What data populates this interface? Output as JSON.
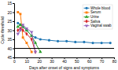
{
  "chart_data": {
    "type": "line",
    "xlabel": "Days after onset of signs and symptoms",
    "ylabel": "Cycle threshold",
    "xlim": [
      0,
      80
    ],
    "ylim": [
      45,
      15
    ],
    "xticks": [
      0,
      10,
      20,
      30,
      40,
      50,
      60,
      70,
      80
    ],
    "yticks": [
      15,
      20,
      25,
      30,
      35,
      40,
      45
    ],
    "cutoff": {
      "value": 40,
      "color": "#000000"
    },
    "grid": false,
    "legend": "upper right",
    "series": [
      {
        "name": "Whole blood",
        "marker": "circle",
        "x": [
          3,
          5,
          7,
          10,
          14,
          17,
          21,
          28,
          35,
          42,
          49,
          56,
          63,
          70,
          77
        ],
        "values": [
          26,
          27,
          28,
          30,
          33,
          34,
          35,
          35.5,
          36,
          36,
          36.5,
          36.5,
          37,
          37,
          37
        ]
      },
      {
        "name": "Serum",
        "marker": "square",
        "x": [
          3,
          5,
          7,
          10,
          14
        ],
        "values": [
          20,
          21,
          34,
          37,
          42
        ]
      },
      {
        "name": "Urine",
        "marker": "triangle-up",
        "x": [
          3,
          5,
          7,
          10,
          14,
          17,
          21
        ],
        "values": [
          28,
          27,
          28,
          30,
          33,
          37,
          42
        ]
      },
      {
        "name": "Saliva",
        "marker": "diamond",
        "x": [
          3,
          5,
          7,
          10,
          14,
          17
        ],
        "values": [
          30,
          29,
          30,
          32,
          35,
          42
        ]
      },
      {
        "name": "Vaginal swab",
        "marker": "triangle-down",
        "x": [
          3,
          5,
          7,
          10,
          14,
          17
        ],
        "values": [
          32,
          30,
          27,
          29,
          31,
          42
        ]
      }
    ]
  }
}
